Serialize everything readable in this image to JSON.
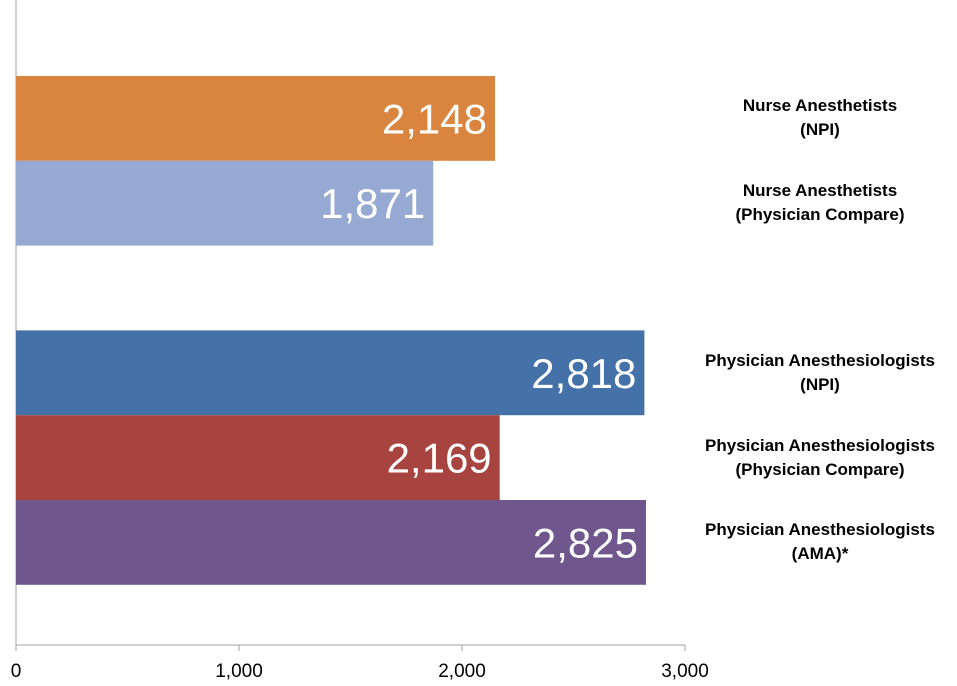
{
  "chart_data": {
    "type": "bar",
    "orientation": "horizontal",
    "categories": [
      "Nurse Anesthetists\n(NPI)",
      "Nurse Anesthetists\n(Physician Compare)",
      null,
      "Physician Anesthesiologists\n(NPI)",
      "Physician Anesthesiologists\n(Physician Compare)",
      "Physician Anesthesiologists\n(AMA)*"
    ],
    "values": [
      2148,
      1871,
      null,
      2818,
      2169,
      2825
    ],
    "value_labels": [
      "2,148",
      "1,871",
      null,
      "2,818",
      "2,169",
      "2,825"
    ],
    "colors": [
      "#d9843f",
      "#95a9d3",
      null,
      "#4472a8",
      "#a8443f",
      "#6f578e"
    ],
    "xlim": [
      0,
      3000
    ],
    "xticks": [
      0,
      {
        "value": 1000,
        "label": "1,000"
      },
      {
        "value": 2000,
        "label": "2,000"
      },
      {
        "value": 3000,
        "label": "3,000"
      }
    ]
  }
}
